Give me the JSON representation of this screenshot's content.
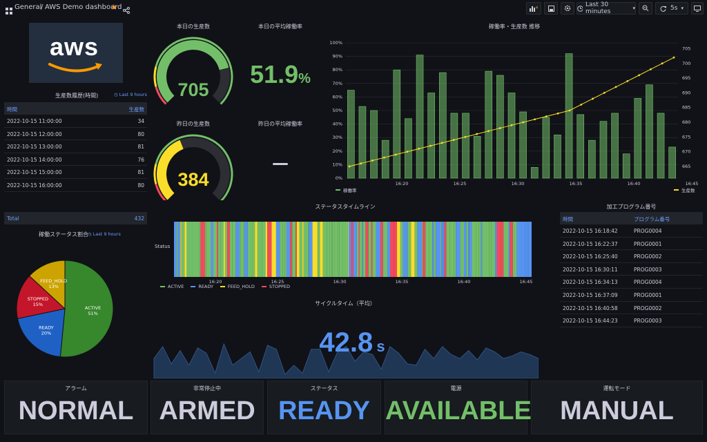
{
  "header": {
    "breadcrumb_root": "General",
    "breadcrumb_sep": "/",
    "title": "AWS Demo dashboard",
    "time_range": "Last 30 minutes",
    "refresh": "5s"
  },
  "logo": {
    "text": "aws"
  },
  "production_history": {
    "title": "生産数履歴(時間)",
    "time_badge": "Last 9 hours",
    "col_time": "時間",
    "col_count": "生産数",
    "rows": [
      [
        "2022-10-15 11:00:00",
        "34"
      ],
      [
        "2022-10-15 12:00:00",
        "80"
      ],
      [
        "2022-10-15 13:00:00",
        "81"
      ],
      [
        "2022-10-15 14:00:00",
        "76"
      ],
      [
        "2022-10-15 15:00:00",
        "81"
      ],
      [
        "2022-10-15 16:00:00",
        "80"
      ]
    ],
    "total_label": "Total",
    "total_value": "432"
  },
  "today_production": {
    "title": "本日の生産数",
    "value": "705",
    "level": 0.78,
    "color": "#73bf69"
  },
  "today_rate": {
    "title": "本日の平均稼働率",
    "value": "51.9",
    "unit": "%",
    "color": "#73bf69"
  },
  "yesterday_production": {
    "title": "昨日の生産数",
    "value": "384",
    "level": 0.42,
    "color": "#fade2a"
  },
  "yesterday_rate": {
    "title": "昨日の平均稼働率",
    "value": "—"
  },
  "trend": {
    "title": "稼働率・生産数 推移",
    "legend_left": "稼働率",
    "legend_right": "生産数"
  },
  "chart_data": [
    {
      "type": "bar",
      "title": "稼働率・生産数 推移",
      "x_ticks": [
        "16:20",
        "16:25",
        "16:30",
        "16:35",
        "16:40",
        "16:45"
      ],
      "y_left_ticks": [
        "0%",
        "10%",
        "20%",
        "30%",
        "40%",
        "50%",
        "60%",
        "70%",
        "80%",
        "90%",
        "100%"
      ],
      "y_right_ticks": [
        "665",
        "670",
        "675",
        "680",
        "685",
        "690",
        "695",
        "700",
        "705"
      ],
      "ylim_left": [
        0,
        100
      ],
      "ylim_right": [
        661,
        707
      ],
      "series": [
        {
          "name": "稼働率",
          "axis": "left",
          "color": "#73bf69",
          "values": [
            65,
            53,
            50,
            28,
            80,
            44,
            91,
            63,
            78,
            48,
            48,
            31,
            79,
            76,
            63,
            49,
            8,
            45,
            32,
            92,
            47,
            28,
            42,
            48,
            18,
            59,
            69,
            48,
            23
          ]
        },
        {
          "name": "生産数",
          "axis": "right",
          "color": "#fade2a",
          "values": [
            665,
            666,
            667,
            668,
            669,
            670,
            671,
            672,
            673,
            674,
            675,
            676,
            677,
            678,
            679,
            680,
            681,
            682,
            683,
            684,
            686,
            688,
            690,
            692,
            694,
            696,
            698,
            700,
            702
          ]
        }
      ]
    },
    {
      "type": "pie",
      "title": "稼働ステータス割合",
      "time_badge": "Last 9 hours",
      "slices": [
        {
          "label": "ACTIVE",
          "pct": "51%",
          "value": 51,
          "color": "#37872d"
        },
        {
          "label": "READY",
          "pct": "20%",
          "value": 20,
          "color": "#1f60c4"
        },
        {
          "label": "STOPPED",
          "pct": "15%",
          "value": 15,
          "color": "#c4162a"
        },
        {
          "label": "FEED_HOLD",
          "pct": "13%",
          "value": 13,
          "color": "#cca300"
        }
      ]
    },
    {
      "type": "area",
      "title": "サイクルタイム（平均）",
      "values": [
        30,
        48,
        22,
        42,
        20,
        46,
        38,
        8,
        52,
        20,
        30,
        40,
        10,
        50,
        44,
        6,
        20,
        8,
        44,
        44,
        10,
        40,
        48,
        26,
        40,
        36,
        14,
        48,
        38,
        22,
        20,
        44,
        30,
        48,
        36,
        30,
        42,
        28,
        46,
        40,
        30,
        34,
        40,
        36,
        30
      ],
      "color": "#5794f2"
    }
  ],
  "status_timeline": {
    "title": "ステータスタイムライン",
    "row_label": "Status",
    "x_ticks": [
      "16:20",
      "16:25",
      "16:30",
      "16:35",
      "16:40",
      "16:45"
    ],
    "legend": [
      {
        "label": "ACTIVE",
        "color": "#73bf69"
      },
      {
        "label": "READY",
        "color": "#5794f2"
      },
      {
        "label": "FEED_HOLD",
        "color": "#fade2a"
      },
      {
        "label": "STOPPED",
        "color": "#f2495c"
      }
    ]
  },
  "pie_legend_title": "稼働ステータス割合",
  "cycle_time": {
    "title": "サイクルタイム（平均）",
    "value": "42.8",
    "unit": "s"
  },
  "program": {
    "title": "加工プログラム番号",
    "col_time": "時間",
    "col_prog": "プログラム番号",
    "rows": [
      [
        "2022-10-15 16:18:42",
        "PROG0004"
      ],
      [
        "2022-10-15 16:22:37",
        "PROG0001"
      ],
      [
        "2022-10-15 16:25:40",
        "PROG0002"
      ],
      [
        "2022-10-15 16:30:11",
        "PROG0003"
      ],
      [
        "2022-10-15 16:34:13",
        "PROG0004"
      ],
      [
        "2022-10-15 16:37:09",
        "PROG0001"
      ],
      [
        "2022-10-15 16:40:58",
        "PROG0002"
      ],
      [
        "2022-10-15 16:44:23",
        "PROG0003"
      ]
    ]
  },
  "stats": [
    {
      "title": "アラーム",
      "value": "NORMAL",
      "color": "#ccccdc"
    },
    {
      "title": "非常停止中",
      "value": "ARMED",
      "color": "#ccccdc"
    },
    {
      "title": "ステータス",
      "value": "READY",
      "color": "#5794f2"
    },
    {
      "title": "電源",
      "value": "AVAILABLE",
      "color": "#73bf69"
    },
    {
      "title": "運転モード",
      "value": "MANUAL",
      "color": "#ccccdc"
    }
  ]
}
